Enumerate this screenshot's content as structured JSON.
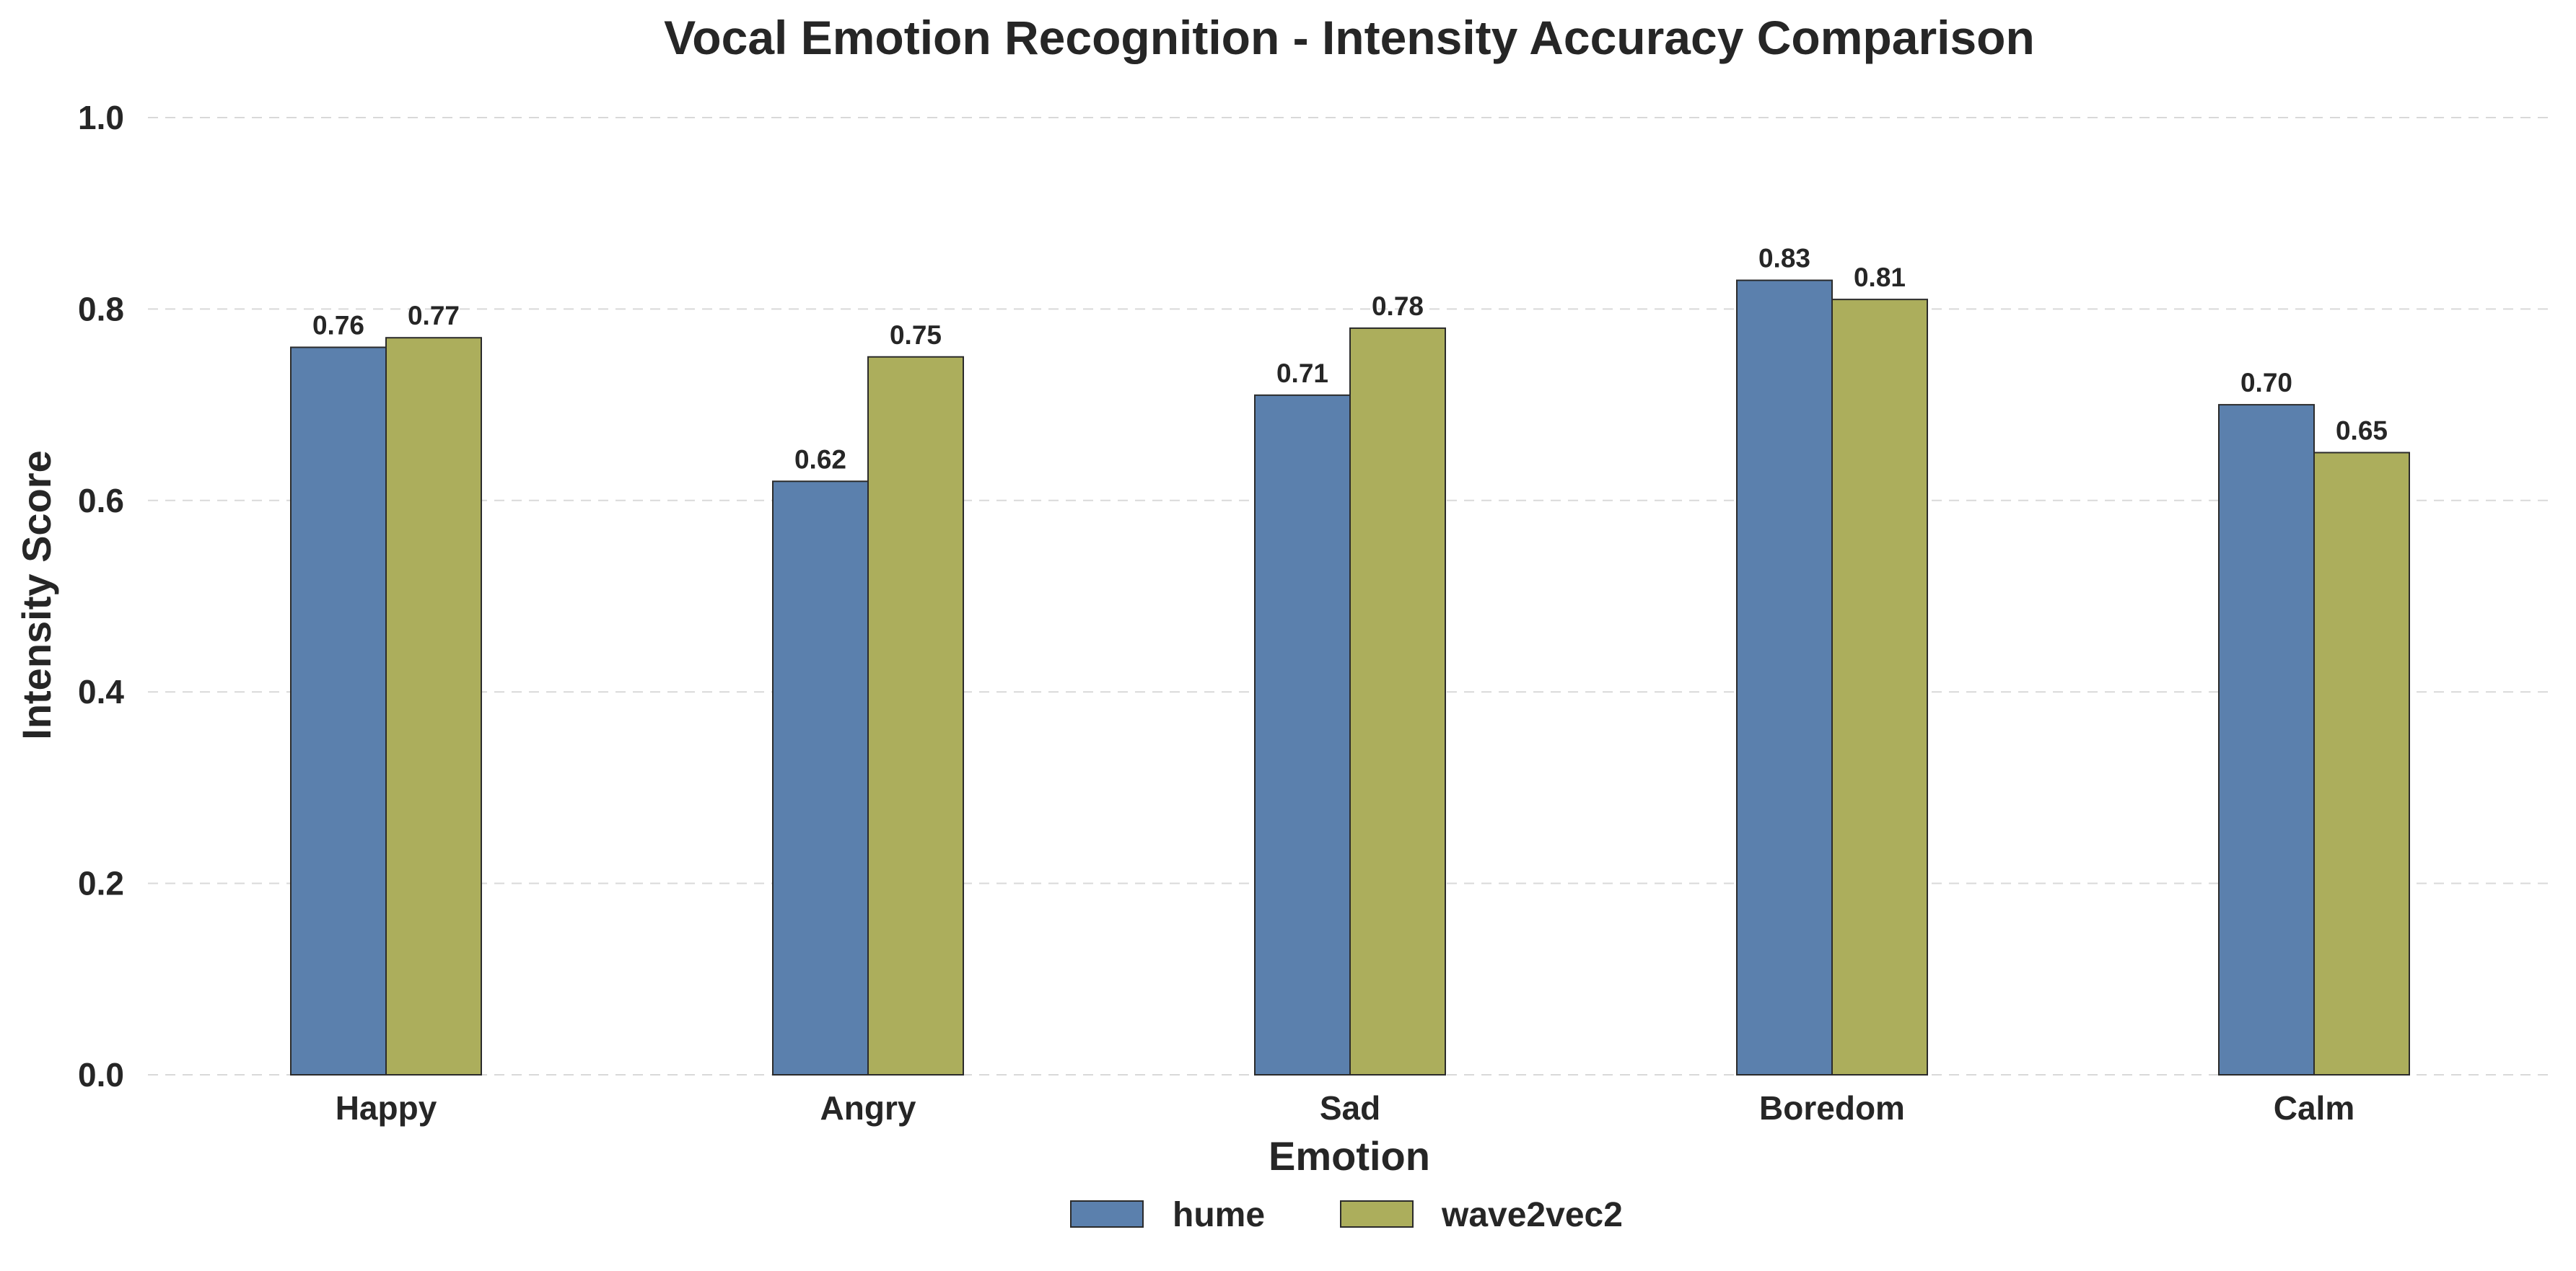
{
  "chart_data": {
    "type": "bar",
    "title": "Vocal Emotion Recognition - Intensity Accuracy Comparison",
    "xlabel": "Emotion",
    "ylabel": "Intensity Score",
    "categories": [
      "Happy",
      "Angry",
      "Sad",
      "Boredom",
      "Calm"
    ],
    "series": [
      {
        "name": "hume",
        "color": "#5b80ad",
        "values": [
          0.76,
          0.62,
          0.71,
          0.83,
          0.7
        ],
        "labels": [
          "0.76",
          "0.62",
          "0.71",
          "0.83",
          "0.70"
        ]
      },
      {
        "name": "wave2vec2",
        "color": "#acae5c",
        "values": [
          0.77,
          0.75,
          0.78,
          0.81,
          0.65
        ],
        "labels": [
          "0.77",
          "0.75",
          "0.78",
          "0.81",
          "0.65"
        ]
      }
    ],
    "ylim": [
      0,
      1.0
    ],
    "yticks": [
      "0.0",
      "0.2",
      "0.4",
      "0.6",
      "0.8",
      "1.0"
    ],
    "grid": true,
    "legend_position": "bottom-center"
  }
}
